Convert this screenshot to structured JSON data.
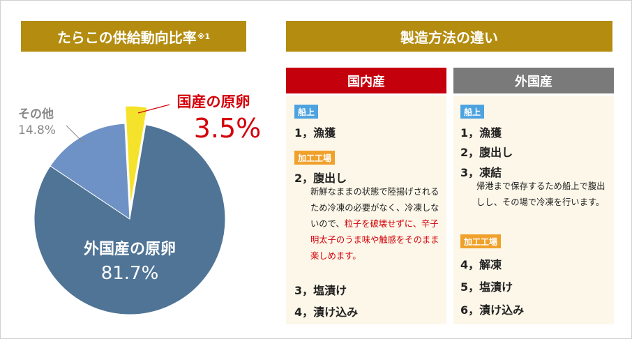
{
  "left_title": "たらこの供給動向比率",
  "left_title_sup": "※1",
  "right_title": "製造方法の違い",
  "chart_data": {
    "type": "pie",
    "slices": [
      {
        "name": "国産の原卵",
        "value": 3.5,
        "label": "3.5%",
        "color": "#f5e22a"
      },
      {
        "name": "外国産の原卵",
        "value": 81.7,
        "label": "81.7%",
        "color": "#4f7496"
      },
      {
        "name": "その他",
        "value": 14.8,
        "label": "14.8%",
        "color": "#6e92c5"
      }
    ]
  },
  "columns": {
    "domestic": {
      "title": "国内産",
      "color": "#c4000d",
      "tag1": "船上",
      "step1": "1，漁獲",
      "tag2": "加工工場",
      "step2": "2，腹出し",
      "note2_a": "新鮮なままの状態で陸揚げされるため冷凍の必要がなく、冷凍しないので、",
      "note2_red": "粒子を破壊せずに、辛子明太子のうま味や触感をそのまま楽しめます。",
      "step3": "3，塩漬け",
      "step4": "4，漬け込み"
    },
    "foreign": {
      "title": "外国産",
      "color": "#7a7a7a",
      "tag1": "船上",
      "step1": "1，漁獲",
      "step2": "2，腹出し",
      "step3": "3，凍結",
      "note3": "帰港まで保存するため船上で腹出しし、その場で冷凍を行います。",
      "tag2": "加工工場",
      "step4": "4，解凍",
      "step5": "5，塩漬け",
      "step6": "6，漬け込み"
    }
  },
  "colors": {
    "gold": "#b48c0f",
    "accent_red": "#d4000a",
    "tag_blue": "#4da3e0",
    "tag_orange": "#f0a12b"
  }
}
